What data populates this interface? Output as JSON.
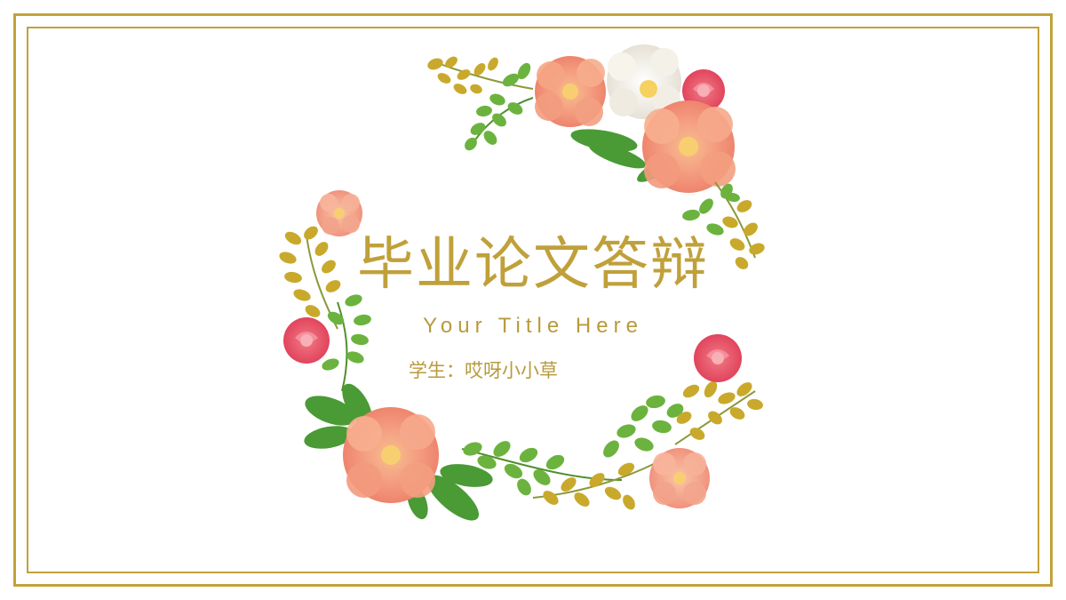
{
  "slide": {
    "title": "毕业论文答辩",
    "subtitle": "Your Title Here",
    "student": "学生：哎呀小小草"
  },
  "colors": {
    "border": "#c2a23a",
    "title": "#c0a03a",
    "text": "#b89a3c",
    "leaf_green": "#5fae3a",
    "leaf_gold": "#c9a92c",
    "flower_peach": "#f4a07f",
    "flower_pink": "#e9566a",
    "flower_white": "#f3f0e8"
  }
}
